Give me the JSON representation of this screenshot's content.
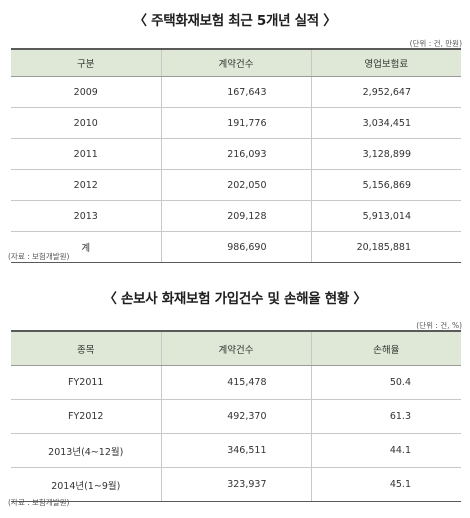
{
  "table1": {
    "title": "〈 주택화재보험 최근 5개년 실적 〉",
    "unit": "(단위 : 건, 만원)",
    "headers": [
      "구분",
      "계약건수",
      "영업보험료"
    ],
    "rows": [
      [
        "2009",
        "167,643",
        "2,952,647"
      ],
      [
        "2010",
        "191,776",
        "3,034,451"
      ],
      [
        "2011",
        "216,093",
        "3,128,899"
      ],
      [
        "2012",
        "202,050",
        "5,156,869"
      ],
      [
        "2013",
        "209,128",
        "5,913,014"
      ],
      [
        "계",
        "986,690",
        "20,185,881"
      ]
    ],
    "source": "(자료 : 보험개발원)"
  },
  "table2": {
    "title": "〈 손보사 화재보험 가입건수 및 손해율 현황 〉",
    "unit": "(단위 : 건, %)",
    "headers": [
      "종목",
      "계약건수",
      "손해율"
    ],
    "rows": [
      [
        "FY2011",
        "415,478",
        "50.4"
      ],
      [
        "FY2012",
        "492,370",
        "61.3"
      ],
      [
        "2013년(4~12월)",
        "346,511",
        "44.1"
      ],
      [
        "2014년(1~9월)",
        "323,937",
        "45.1"
      ]
    ],
    "source": "(자료 : 보험개발원)"
  }
}
